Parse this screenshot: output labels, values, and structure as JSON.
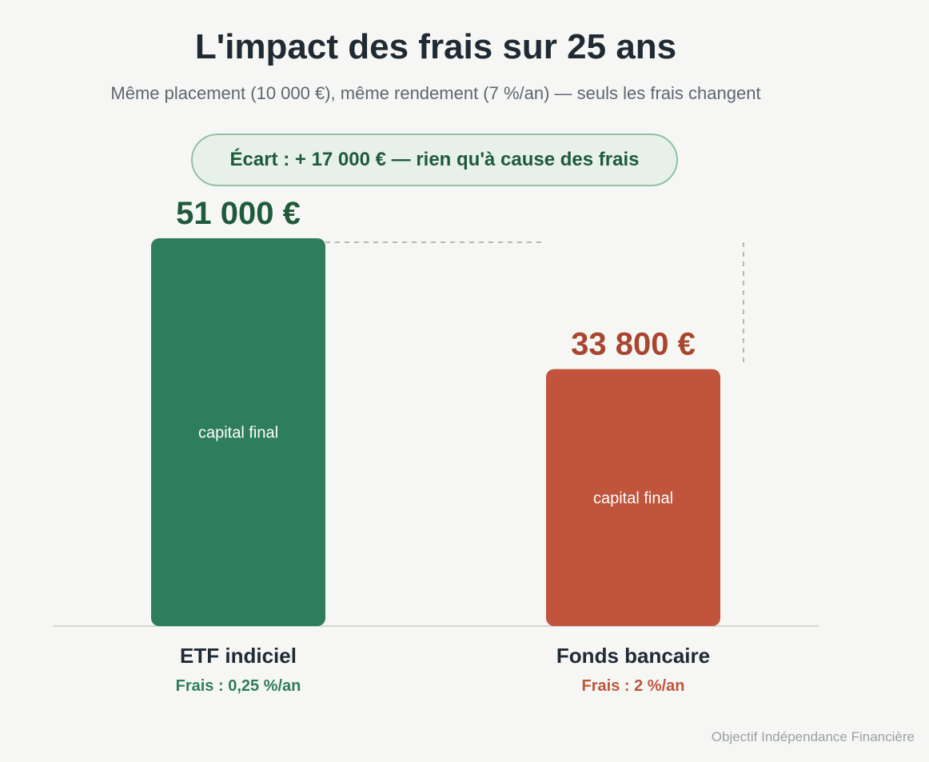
{
  "header": {
    "title": "L'impact des frais sur 25 ans",
    "subtitle": "Même placement (10 000 €), même rendement (7 %/an) — seuls les frais changent"
  },
  "badge": {
    "text": "Écart : + 17 000 € — rien qu'à cause des frais"
  },
  "footer": {
    "credit": "Objectif Indépendance Financière"
  },
  "chart_data": {
    "type": "bar",
    "title": "L'impact des frais sur 25 ans",
    "subtitle": "Même placement (10 000 €), même rendement (7 %/an) — seuls les frais changent",
    "categories": [
      "ETF indiciel",
      "Fonds bancaire"
    ],
    "values": [
      51000,
      33800
    ],
    "value_labels": [
      "51 000 €",
      "33 800 €"
    ],
    "bar_inner_labels": [
      "capital final",
      "capital final"
    ],
    "fee_labels": [
      "Frais : 0,25 %/an",
      "Frais : 2 %/an"
    ],
    "colors": [
      "#2e7d5b",
      "#c0553c"
    ],
    "value_label_colors": [
      "#1f5a3a",
      "#a8462f"
    ],
    "ylim": [
      0,
      51000
    ],
    "annotation": "Écart : + 17 000 € — rien qu'à cause des frais",
    "grid": false,
    "legend": "none"
  }
}
